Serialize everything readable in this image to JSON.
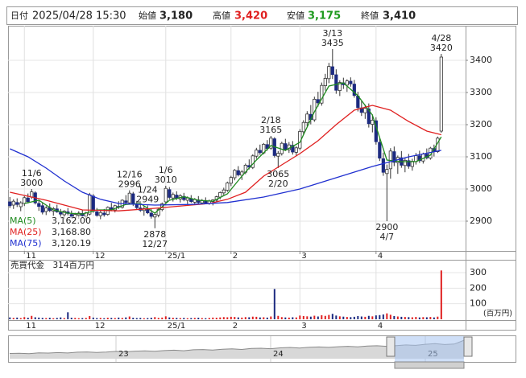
{
  "header": {
    "date_key": "日付",
    "date": "2025/04/28 15:30",
    "open_key": "始値",
    "open": "3,180",
    "high_key": "高値",
    "high": "3,420",
    "low_key": "安値",
    "low": "3,175",
    "close_key": "終値",
    "close": "3,410"
  },
  "chart_data": [
    {
      "type": "candlestick",
      "up_color": "#ffffff",
      "down_color": "#1c2a80",
      "edge_color": "#333333",
      "xlim": [
        -0.5,
        125.7
      ],
      "ylim": [
        2807.5,
        3507.5
      ],
      "yticks": [
        2900,
        3000,
        3100,
        3200,
        3300,
        3400
      ],
      "xticks": [
        {
          "value": 4,
          "label": "11"
        },
        {
          "value": 23,
          "label": "12"
        },
        {
          "value": 43,
          "label": "25/1"
        },
        {
          "value": 61,
          "label": "2"
        },
        {
          "value": 80,
          "label": "3"
        },
        {
          "value": 101,
          "label": "4"
        }
      ],
      "grid": true,
      "candles": [
        [
          2960,
          2975,
          2941,
          2948
        ],
        [
          2950,
          2968,
          2938,
          2962
        ],
        [
          2958,
          2971,
          2944,
          2952
        ],
        [
          2945,
          2962,
          2931,
          2957
        ],
        [
          2955,
          2978,
          2947,
          2973
        ],
        [
          2972,
          2986,
          2955,
          2961
        ],
        [
          2975,
          3000,
          2969,
          2991
        ],
        [
          2988,
          2993,
          2952,
          2957
        ],
        [
          2955,
          2966,
          2932,
          2946
        ],
        [
          2948,
          2957,
          2921,
          2928
        ],
        [
          2930,
          2947,
          2919,
          2941
        ],
        [
          2942,
          2955,
          2928,
          2933
        ],
        [
          2931,
          2944,
          2917,
          2939
        ],
        [
          2938,
          2951,
          2926,
          2929
        ],
        [
          2927,
          2938,
          2911,
          2922
        ],
        [
          2920,
          2934,
          2906,
          2931
        ],
        [
          2929,
          2941,
          2918,
          2924
        ],
        [
          2921,
          2933,
          2909,
          2913
        ],
        [
          2912,
          2926,
          2902,
          2921
        ],
        [
          2918,
          2931,
          2907,
          2925
        ],
        [
          2924,
          2936,
          2913,
          2917
        ],
        [
          2915,
          2929,
          2904,
          2926
        ],
        [
          2922,
          2988,
          2918,
          2982
        ],
        [
          2978,
          2984,
          2926,
          2931
        ],
        [
          2929,
          2941,
          2912,
          2918
        ],
        [
          2917,
          2932,
          2906,
          2927
        ],
        [
          2925,
          2938,
          2914,
          2920
        ],
        [
          2921,
          2946,
          2917,
          2943
        ],
        [
          2942,
          2957,
          2931,
          2936
        ],
        [
          2935,
          2951,
          2927,
          2948
        ],
        [
          2946,
          2962,
          2938,
          2944
        ],
        [
          2943,
          2968,
          2939,
          2965
        ],
        [
          2963,
          2981,
          2952,
          2958
        ],
        [
          2957,
          2996,
          2953,
          2987
        ],
        [
          2985,
          2991,
          2947,
          2953
        ],
        [
          2951,
          2963,
          2936,
          2942
        ],
        [
          2941,
          2955,
          2929,
          2934
        ],
        [
          2933,
          2946,
          2917,
          2939
        ],
        [
          2937,
          2949,
          2922,
          2926
        ],
        [
          2925,
          2939,
          2908,
          2915
        ],
        [
          2913,
          2927,
          2878,
          2921
        ],
        [
          2919,
          2941,
          2912,
          2937
        ],
        [
          2936,
          2958,
          2931,
          2954
        ],
        [
          2960,
          3010,
          2957,
          3002
        ],
        [
          2998,
          3006,
          2968,
          2974
        ],
        [
          2972,
          2989,
          2961,
          2983
        ],
        [
          2981,
          2993,
          2966,
          2971
        ],
        [
          2969,
          2984,
          2958,
          2979
        ],
        [
          2977,
          2988,
          2962,
          2967
        ],
        [
          2965,
          2977,
          2953,
          2972
        ],
        [
          2970,
          2981,
          2957,
          2961
        ],
        [
          2959,
          2972,
          2951,
          2968
        ],
        [
          2966,
          2978,
          2955,
          2958
        ],
        [
          2957,
          2969,
          2952,
          2964
        ],
        [
          2962,
          2974,
          2954,
          2956
        ],
        [
          2955,
          2967,
          2951,
          2963
        ],
        [
          2961,
          2968,
          2949,
          2966
        ],
        [
          2965,
          2979,
          2961,
          2976
        ],
        [
          2975,
          2992,
          2968,
          2989
        ],
        [
          2988,
          3004,
          2981,
          2997
        ],
        [
          2996,
          3023,
          2991,
          3019
        ],
        [
          3018,
          3041,
          3009,
          3036
        ],
        [
          3035,
          3062,
          3027,
          3058
        ],
        [
          3057,
          3071,
          3039,
          3044
        ],
        [
          3043,
          3059,
          3028,
          3053
        ],
        [
          3052,
          3079,
          3046,
          3074
        ],
        [
          3073,
          3092,
          3061,
          3068
        ],
        [
          3067,
          3108,
          3062,
          3103
        ],
        [
          3102,
          3128,
          3094,
          3121
        ],
        [
          3120,
          3138,
          3106,
          3113
        ],
        [
          3112,
          3143,
          3108,
          3139
        ],
        [
          3138,
          3152,
          3119,
          3126
        ],
        [
          3127,
          3165,
          3122,
          3158
        ],
        [
          3156,
          3161,
          3098,
          3104
        ],
        [
          3102,
          3118,
          3065,
          3111
        ],
        [
          3110,
          3147,
          3104,
          3142
        ],
        [
          3141,
          3156,
          3118,
          3123
        ],
        [
          3122,
          3146,
          3112,
          3137
        ],
        [
          3136,
          3149,
          3107,
          3115
        ],
        [
          3114,
          3133,
          3102,
          3128
        ],
        [
          3127,
          3186,
          3121,
          3179
        ],
        [
          3178,
          3214,
          3169,
          3207
        ],
        [
          3206,
          3242,
          3195,
          3233
        ],
        [
          3232,
          3261,
          3201,
          3216
        ],
        [
          3215,
          3287,
          3209,
          3279
        ],
        [
          3278,
          3302,
          3256,
          3268
        ],
        [
          3267,
          3331,
          3259,
          3322
        ],
        [
          3321,
          3358,
          3306,
          3344
        ],
        [
          3343,
          3392,
          3329,
          3381
        ],
        [
          3380,
          3435,
          3342,
          3356
        ],
        [
          3355,
          3372,
          3296,
          3307
        ],
        [
          3306,
          3338,
          3289,
          3331
        ],
        [
          3330,
          3346,
          3311,
          3324
        ],
        [
          3323,
          3341,
          3302,
          3336
        ],
        [
          3335,
          3347,
          3318,
          3327
        ],
        [
          3326,
          3339,
          3284,
          3291
        ],
        [
          3289,
          3302,
          3241,
          3253
        ],
        [
          3252,
          3273,
          3227,
          3238
        ],
        [
          3237,
          3262,
          3218,
          3251
        ],
        [
          3249,
          3266,
          3191,
          3203
        ],
        [
          3201,
          3232,
          3176,
          3214
        ],
        [
          3212,
          3223,
          3138,
          3147
        ],
        [
          3145,
          3158,
          3087,
          3096
        ],
        [
          3094,
          3113,
          3041,
          3052
        ],
        [
          3048,
          3076,
          2900,
          3061
        ],
        [
          3063,
          3127,
          3032,
          3118
        ],
        [
          3116,
          3132,
          3071,
          3083
        ],
        [
          3082,
          3104,
          3047,
          3098
        ],
        [
          3097,
          3118,
          3066,
          3074
        ],
        [
          3073,
          3096,
          3052,
          3089
        ],
        [
          3088,
          3109,
          3063,
          3071
        ],
        [
          3070,
          3094,
          3057,
          3086
        ],
        [
          3085,
          3112,
          3076,
          3104
        ],
        [
          3103,
          3119,
          3081,
          3088
        ],
        [
          3087,
          3113,
          3079,
          3109
        ],
        [
          3108,
          3126,
          3092,
          3097
        ],
        [
          3096,
          3131,
          3091,
          3127
        ],
        [
          3126,
          3138,
          3101,
          3117
        ],
        [
          3116,
          3163,
          3112,
          3158
        ],
        [
          3180,
          3420,
          3175,
          3410
        ]
      ],
      "series": [
        {
          "name": "MA(5)",
          "color": "#1e8a1e",
          "last_label": "3,162.00",
          "x": [
            4,
            8,
            12,
            16,
            20,
            24,
            28,
            32,
            36,
            40,
            44,
            48,
            52,
            56,
            60,
            64,
            68,
            72,
            76,
            80,
            84,
            88,
            92,
            96,
            100,
            104,
            108,
            112,
            116,
            119
          ],
          "values": [
            2955,
            2965,
            2935,
            2925,
            2922,
            2935,
            2935,
            2952,
            2955,
            2925,
            2965,
            2976,
            2965,
            2962,
            2985,
            3040,
            3090,
            3135,
            3120,
            3145,
            3240,
            3320,
            3330,
            3290,
            3230,
            3090,
            3085,
            3085,
            3105,
            3162
          ]
        },
        {
          "name": "MA(25)",
          "color": "#e02020",
          "last_label": "3,168.80",
          "x": [
            0,
            10,
            20,
            30,
            40,
            50,
            55,
            60,
            65,
            70,
            75,
            80,
            85,
            90,
            95,
            100,
            105,
            110,
            115,
            119
          ],
          "values": [
            2990,
            2965,
            2935,
            2932,
            2940,
            2950,
            2955,
            2968,
            2990,
            3040,
            3075,
            3110,
            3150,
            3200,
            3245,
            3260,
            3245,
            3210,
            3180,
            3168.8
          ]
        },
        {
          "name": "MA(75)",
          "color": "#2030d0",
          "last_label": "3,120.19",
          "x": [
            0,
            5,
            10,
            15,
            20,
            25,
            30,
            40,
            50,
            60,
            70,
            80,
            90,
            100,
            110,
            119
          ],
          "values": [
            3125,
            3100,
            3065,
            3025,
            2990,
            2968,
            2955,
            2950,
            2952,
            2958,
            2975,
            3000,
            3035,
            3070,
            3100,
            3120.19
          ]
        }
      ],
      "annotations": [
        {
          "label": "11/6",
          "price": 3000
        },
        {
          "label": "12/16",
          "price": 2996
        },
        {
          "label": "1/6",
          "price": 3010
        },
        {
          "label": "2/18",
          "price": 3165
        },
        {
          "label": "3/13",
          "price": 3435
        },
        {
          "label": "4/28",
          "price": 3420
        },
        {
          "label": "2/20",
          "price": 3065
        },
        {
          "label": "1/24",
          "price": 2949
        },
        {
          "label": "12/27",
          "price": 2878
        },
        {
          "label": "4/7",
          "price": 2900
        }
      ]
    },
    {
      "type": "bar",
      "title": "売買代金　314百万円",
      "unit": "(百万円)",
      "ylim": [
        0,
        331
      ],
      "yticks": [
        100,
        200,
        300
      ],
      "up_color": "#e02020",
      "down_color": "#1c2a80",
      "values": [
        12,
        9,
        11,
        8,
        14,
        10,
        22,
        13,
        11,
        9,
        8,
        10,
        7,
        9,
        12,
        8,
        45,
        10,
        9,
        7,
        8,
        9,
        21,
        11,
        8,
        9,
        7,
        10,
        9,
        8,
        11,
        9,
        12,
        18,
        10,
        8,
        9,
        7,
        8,
        10,
        14,
        9,
        11,
        19,
        12,
        10,
        9,
        8,
        9,
        7,
        8,
        9,
        10,
        8,
        7,
        9,
        11,
        10,
        12,
        14,
        13,
        16,
        15,
        12,
        11,
        14,
        13,
        17,
        16,
        12,
        13,
        11,
        18,
        195,
        22,
        14,
        12,
        11,
        13,
        12,
        24,
        21,
        19,
        17,
        23,
        18,
        26,
        22,
        28,
        35,
        24,
        19,
        17,
        15,
        14,
        16,
        21,
        18,
        16,
        22,
        19,
        25,
        27,
        31,
        38,
        29,
        21,
        18,
        16,
        15,
        14,
        13,
        15,
        12,
        14,
        13,
        15,
        12,
        17,
        314
      ]
    },
    {
      "type": "area",
      "color": "#8a8a8a",
      "fill": "#d8d8d8",
      "xlim": [
        0,
        47
      ],
      "ylim": [
        2000,
        3600
      ],
      "xticks": [
        {
          "value": 11,
          "label": "23"
        },
        {
          "value": 27,
          "label": "24"
        },
        {
          "value": 43,
          "label": "25"
        }
      ],
      "values": [
        2400,
        2420,
        2380,
        2450,
        2430,
        2470,
        2440,
        2500,
        2520,
        2480,
        2510,
        2560,
        2530,
        2580,
        2600,
        2570,
        2620,
        2650,
        2610,
        2680,
        2700,
        2660,
        2720,
        2750,
        2710,
        2780,
        2800,
        2760,
        2830,
        2860,
        2820,
        2880,
        2900,
        2870,
        2920,
        2950,
        2910,
        2970,
        2990,
        2950,
        3000,
        3050,
        3020,
        3100,
        3150,
        3080,
        3120,
        3410
      ]
    }
  ]
}
